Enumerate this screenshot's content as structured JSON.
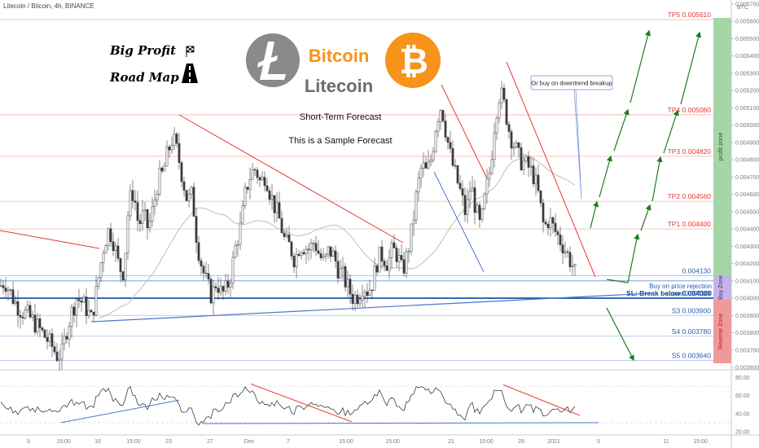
{
  "header": {
    "title": "Litecoin / Bitcoin, 4h, BINANCE"
  },
  "axis": {
    "unit_label": "BTC"
  },
  "overlay": {
    "big_profit": "Big Profit",
    "road_map": "Road Map",
    "brand_bitcoin": "Bitcoin",
    "brand_litecoin": "Litecoin",
    "short_term": "Short-Term Forecast",
    "sample": "This is a Sample Forecast",
    "callout": "Or buy on downtrend breakup",
    "buy_rejection_1": "Buy on price rejection",
    "buy_rejection_2": "above 0.004100",
    "profit_zone": "profit zone",
    "buy_zone": "Buy Zone",
    "reverse_zone": "Reverse Zone"
  },
  "colors": {
    "candle": "#3b3b3b",
    "red_line": "#e53935",
    "blue_line": "#4a78c8",
    "green_arrow": "#1f7a1f",
    "profit_zone": "#a5d6a7",
    "buy_zone": "#c5b3e6",
    "reverse_zone": "#ef9a9a",
    "ma": "#b7b7b7",
    "bitcoin": "#f7931a",
    "litecoin": "#8a8a8a"
  },
  "chart_data": {
    "type": "candlestick",
    "symbol": "LTCBTC",
    "timeframe": "4h",
    "exchange": "BINANCE",
    "ylim": [
      0.0036,
      0.0057
    ],
    "price_ticks": [
      "0.005700",
      "0.005600",
      "0.005500",
      "0.005400",
      "0.005300",
      "0.005200",
      "0.005100",
      "0.005000",
      "0.004900",
      "0.004800",
      "0.004700",
      "0.004600",
      "0.004500",
      "0.004400",
      "0.004300",
      "0.004200",
      "0.004100",
      "0.004000",
      "0.003900",
      "0.003800",
      "0.003700",
      "0.003600"
    ],
    "time_ticks": [
      "9",
      "15:00",
      "16",
      "15:00",
      "23",
      "27",
      "Dec",
      "7",
      "15:00",
      "15:00",
      "21",
      "15:00",
      "28",
      "2021",
      "5",
      "11",
      "15:00"
    ],
    "levels": [
      {
        "label": "TP5 0.005610",
        "value": 0.00561,
        "kind": "tp"
      },
      {
        "label": "TP4 0.005060",
        "value": 0.00506,
        "kind": "tp"
      },
      {
        "label": "TP3 0.004820",
        "value": 0.00482,
        "kind": "tp"
      },
      {
        "label": "TP2 0.004560",
        "value": 0.00456,
        "kind": "tp"
      },
      {
        "label": "TP1 0.004400",
        "value": 0.0044,
        "kind": "tp"
      },
      {
        "label": "0.004130",
        "value": 0.00413,
        "kind": "entry"
      },
      {
        "label": "SL: Break below 0.004000",
        "value": 0.004,
        "kind": "sl"
      },
      {
        "label": "S3 0.003900",
        "value": 0.0039,
        "kind": "s"
      },
      {
        "label": "S4 0.003780",
        "value": 0.00378,
        "kind": "s"
      },
      {
        "label": "S5 0.003640",
        "value": 0.00364,
        "kind": "s"
      }
    ],
    "close_path": [
      [
        0,
        0.00407
      ],
      [
        6,
        0.0041
      ],
      [
        12,
        0.00404
      ],
      [
        18,
        0.00398
      ],
      [
        26,
        0.00393
      ],
      [
        34,
        0.0039
      ],
      [
        42,
        0.00386
      ],
      [
        50,
        0.00381
      ],
      [
        58,
        0.00376
      ],
      [
        64,
        0.00372
      ],
      [
        70,
        0.00367
      ],
      [
        76,
        0.00368
      ],
      [
        82,
        0.00382
      ],
      [
        88,
        0.00392
      ],
      [
        94,
        0.004
      ],
      [
        100,
        0.00398
      ],
      [
        106,
        0.00394
      ],
      [
        112,
        0.00388
      ],
      [
        117,
        0.004
      ],
      [
        122,
        0.00415
      ],
      [
        128,
        0.00432
      ],
      [
        134,
        0.0044
      ],
      [
        140,
        0.00432
      ],
      [
        146,
        0.00418
      ],
      [
        152,
        0.00415
      ],
      [
        158,
        0.00455
      ],
      [
        164,
        0.00462
      ],
      [
        170,
        0.00442
      ],
      [
        176,
        0.00448
      ],
      [
        182,
        0.0044
      ],
      [
        188,
        0.00452
      ],
      [
        194,
        0.00468
      ],
      [
        200,
        0.00472
      ],
      [
        206,
        0.00484
      ],
      [
        212,
        0.00493
      ],
      [
        218,
        0.00484
      ],
      [
        224,
        0.0047
      ],
      [
        230,
        0.00456
      ],
      [
        236,
        0.0046
      ],
      [
        242,
        0.00432
      ],
      [
        248,
        0.00418
      ],
      [
        254,
        0.00408
      ],
      [
        260,
        0.00401
      ],
      [
        266,
        0.0041
      ],
      [
        272,
        0.00402
      ],
      [
        278,
        0.00405
      ],
      [
        284,
        0.00415
      ],
      [
        290,
        0.00432
      ],
      [
        296,
        0.00442
      ],
      [
        302,
        0.00463
      ],
      [
        308,
        0.00472
      ],
      [
        314,
        0.00475
      ],
      [
        320,
        0.00466
      ],
      [
        326,
        0.00472
      ],
      [
        332,
        0.0046
      ],
      [
        338,
        0.00452
      ],
      [
        344,
        0.00444
      ],
      [
        350,
        0.00432
      ],
      [
        356,
        0.0043
      ],
      [
        362,
        0.00422
      ],
      [
        368,
        0.00431
      ],
      [
        374,
        0.0043
      ],
      [
        380,
        0.00428
      ],
      [
        386,
        0.00433
      ],
      [
        392,
        0.00425
      ],
      [
        398,
        0.0042
      ],
      [
        404,
        0.00428
      ],
      [
        410,
        0.00424
      ],
      [
        416,
        0.00416
      ],
      [
        422,
        0.00412
      ],
      [
        428,
        0.00405
      ],
      [
        434,
        0.004
      ],
      [
        440,
        0.00402
      ],
      [
        446,
        0.00408
      ],
      [
        452,
        0.00404
      ],
      [
        458,
        0.0041
      ],
      [
        464,
        0.00423
      ],
      [
        470,
        0.00425
      ],
      [
        476,
        0.0042
      ],
      [
        482,
        0.00428
      ],
      [
        488,
        0.00425
      ],
      [
        494,
        0.00415
      ],
      [
        500,
        0.00425
      ],
      [
        506,
        0.0044
      ],
      [
        512,
        0.00462
      ],
      [
        518,
        0.00477
      ],
      [
        524,
        0.00472
      ],
      [
        530,
        0.00482
      ],
      [
        536,
        0.00503
      ],
      [
        542,
        0.00512
      ],
      [
        548,
        0.00495
      ],
      [
        554,
        0.0048
      ],
      [
        560,
        0.0047
      ],
      [
        566,
        0.0046
      ],
      [
        572,
        0.00448
      ],
      [
        578,
        0.00466
      ],
      [
        584,
        0.00452
      ],
      [
        590,
        0.0044
      ],
      [
        596,
        0.0046
      ],
      [
        602,
        0.00475
      ],
      [
        608,
        0.00505
      ],
      [
        614,
        0.0052
      ],
      [
        620,
        0.0051
      ],
      [
        626,
        0.00495
      ],
      [
        632,
        0.00488
      ],
      [
        638,
        0.0048
      ],
      [
        644,
        0.00478
      ],
      [
        650,
        0.00475
      ],
      [
        656,
        0.0047
      ],
      [
        662,
        0.00458
      ],
      [
        668,
        0.0044
      ],
      [
        674,
        0.00446
      ],
      [
        680,
        0.0044
      ],
      [
        686,
        0.00435
      ],
      [
        692,
        0.0043
      ],
      [
        698,
        0.00424
      ],
      [
        704,
        0.00418
      ],
      [
        708,
        0.00411
      ]
    ],
    "rsi": {
      "ylim": [
        20,
        85
      ],
      "ticks": [
        "80.00",
        "60.00",
        "40.00",
        "20.00"
      ]
    }
  }
}
